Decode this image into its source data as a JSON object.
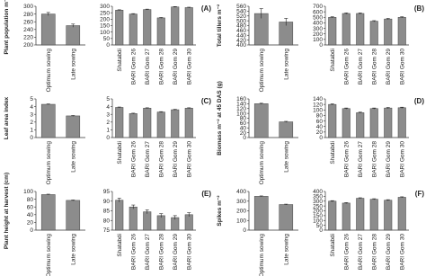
{
  "chart_data": [
    {
      "type": "bar",
      "ylabel": "Plant population m⁻²",
      "categories": [
        "Optimum sowing",
        "Late sowing"
      ],
      "values": [
        280,
        250
      ],
      "errors": [
        4,
        4
      ],
      "ylim": [
        200,
        300
      ],
      "yticks": [
        200,
        220,
        240,
        260,
        280,
        300
      ],
      "color": "#8c8c8c"
    },
    {
      "type": "bar",
      "annotation": "(A)",
      "categories": [
        "Shatabdi",
        "BARI Gom 26",
        "BARI Gom 27",
        "BARI Gom 28",
        "BARI Gom 29",
        "BARI Gom 30"
      ],
      "values": [
        270,
        240,
        275,
        210,
        295,
        290
      ],
      "errors": [
        3,
        3,
        3,
        3,
        3,
        3
      ],
      "ylim": [
        0,
        300
      ],
      "yticks": [
        0,
        50,
        100,
        150,
        200,
        250,
        300
      ],
      "color": "#8c8c8c"
    },
    {
      "type": "bar",
      "ylabel": "Total tillers m⁻²",
      "categories": [
        "Optimum sowing",
        "Late sowing"
      ],
      "values": [
        530,
        495
      ],
      "errors": [
        20,
        15
      ],
      "ylim": [
        400,
        560
      ],
      "yticks": [
        400,
        420,
        440,
        460,
        480,
        500,
        520,
        540,
        560
      ],
      "color": "#8c8c8c"
    },
    {
      "type": "bar",
      "annotation": "(B)",
      "categories": [
        "Shatabdi",
        "BARI Gom 26",
        "BARI Gom 27",
        "BARI Gom 28",
        "BARI Gom 29",
        "BARI Gom 30"
      ],
      "values": [
        500,
        570,
        570,
        430,
        470,
        500
      ],
      "errors": [
        10,
        10,
        10,
        10,
        10,
        10
      ],
      "ylim": [
        0,
        700
      ],
      "yticks": [
        0,
        100,
        200,
        300,
        400,
        500,
        600,
        700
      ],
      "color": "#8c8c8c"
    },
    {
      "type": "bar",
      "ylabel": "Leaf area index",
      "categories": [
        "Optimum sowing",
        "Late sowing"
      ],
      "values": [
        4.3,
        2.8
      ],
      "errors": [
        0.05,
        0.05
      ],
      "ylim": [
        0,
        5
      ],
      "yticks": [
        0,
        1,
        2,
        3,
        4,
        5
      ],
      "color": "#8c8c8c"
    },
    {
      "type": "bar",
      "annotation": "(C)",
      "categories": [
        "Shatabdi",
        "BARI Gom 26",
        "BARI Gom 27",
        "BARI Gom 28",
        "BARI Gom 29",
        "BARI Gom 30"
      ],
      "values": [
        3.9,
        3.1,
        3.8,
        3.3,
        3.6,
        3.8
      ],
      "errors": [
        0.05,
        0.05,
        0.05,
        0.05,
        0.05,
        0.05
      ],
      "ylim": [
        0,
        5
      ],
      "yticks": [
        0,
        1,
        2,
        3,
        4,
        5
      ],
      "color": "#8c8c8c"
    },
    {
      "type": "bar",
      "ylabel": "Biomass m⁻² at 45 DAS (g)",
      "categories": [
        "Optimum sowing",
        "Late sowing"
      ],
      "values": [
        140,
        65
      ],
      "errors": [
        2,
        2
      ],
      "ylim": [
        0,
        160
      ],
      "yticks": [
        0,
        20,
        40,
        60,
        80,
        100,
        120,
        140,
        160
      ],
      "color": "#8c8c8c"
    },
    {
      "type": "bar",
      "annotation": "(D)",
      "categories": [
        "Shatabdi",
        "BARI Gom 26",
        "BARI Gom 27",
        "BARI Gom 28",
        "BARI Gom 29",
        "BARI Gom 30"
      ],
      "values": [
        120,
        105,
        90,
        105,
        107,
        108
      ],
      "errors": [
        2,
        2,
        2,
        2,
        2,
        2
      ],
      "ylim": [
        0,
        140
      ],
      "yticks": [
        0,
        20,
        40,
        60,
        80,
        100,
        120,
        140
      ],
      "color": "#8c8c8c"
    },
    {
      "type": "bar",
      "ylabel": "Plant height at harvest (cm)",
      "categories": [
        "Optimum sowing",
        "Late sowing"
      ],
      "values": [
        92,
        77
      ],
      "errors": [
        1,
        1
      ],
      "ylim": [
        0,
        100
      ],
      "yticks": [
        0,
        20,
        40,
        60,
        80,
        100
      ],
      "color": "#8c8c8c"
    },
    {
      "type": "bar",
      "annotation": "(E)",
      "categories": [
        "Shatabdi",
        "BARI Gom 26",
        "BARI Gom 27",
        "BARI Gom 28",
        "BARI Gom 29",
        "BARI Gom 30"
      ],
      "values": [
        90.5,
        87,
        84.5,
        82.5,
        81.5,
        83
      ],
      "errors": [
        1,
        1,
        1,
        1,
        1,
        1
      ],
      "ylim": [
        75,
        95
      ],
      "yticks": [
        75,
        80,
        85,
        90,
        95
      ],
      "color": "#8c8c8c"
    },
    {
      "type": "bar",
      "ylabel": "Spikes m⁻²",
      "categories": [
        "Optimum sowing",
        "Late sowing"
      ],
      "values": [
        350,
        265
      ],
      "errors": [
        4,
        4
      ],
      "ylim": [
        0,
        400
      ],
      "yticks": [
        0,
        100,
        200,
        300,
        400
      ],
      "color": "#8c8c8c"
    },
    {
      "type": "bar",
      "annotation": "(F)",
      "categories": [
        "Shatabdi",
        "BARI Gom 26",
        "BARI Gom 27",
        "BARI Gom 28",
        "BARI Gom 29",
        "BARI Gom 30"
      ],
      "values": [
        300,
        280,
        330,
        320,
        310,
        340
      ],
      "errors": [
        5,
        5,
        5,
        5,
        5,
        5
      ],
      "ylim": [
        0,
        400
      ],
      "yticks": [
        0,
        50,
        100,
        150,
        200,
        250,
        300,
        350,
        400
      ],
      "color": "#8c8c8c"
    }
  ]
}
